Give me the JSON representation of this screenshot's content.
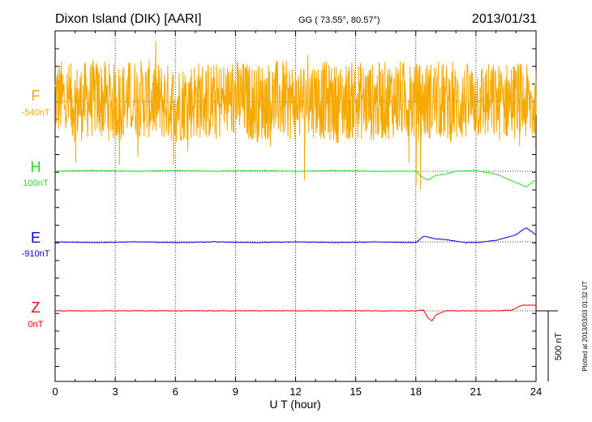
{
  "header": {
    "station": "Dixon Island (DIK)  [AARI]",
    "coords": "GG ( 73.55°,  80.57°)",
    "date": "2013/01/31"
  },
  "side_note": "Plotted at 2013/03/03 01:32 UT",
  "scale_label": "500 nT",
  "colors": {
    "F": "#f5a800",
    "H": "#22dd22",
    "E": "#0000dd",
    "Z": "#ee0000",
    "axis": "#000000"
  },
  "chart_data": {
    "type": "line",
    "title": "Dixon Island (DIK)  [AARI]",
    "xlabel": "U T (hour)",
    "xlim": [
      0,
      24
    ],
    "x_ticks": [
      "0",
      "3",
      "6",
      "9",
      "12",
      "15",
      "18",
      "21",
      "24"
    ],
    "grid": "dotted vertical at 3-hour intervals, dotted horizontal baselines",
    "scale_bar_nT": 500,
    "series": [
      {
        "name": "F",
        "baseline_label": "-540nT",
        "color": "#f5a800",
        "note": "highly noisy trace oscillating roughly ±350 nT around baseline",
        "x": [
          0,
          1,
          2,
          3,
          4,
          5,
          6,
          7,
          8,
          9,
          10,
          11,
          12,
          13,
          14,
          15,
          16,
          17,
          18,
          19,
          20,
          21,
          22,
          23,
          24
        ],
        "y": [
          120,
          -60,
          90,
          -40,
          110,
          30,
          -80,
          60,
          -20,
          90,
          -50,
          70,
          0,
          100,
          -70,
          40,
          -30,
          80,
          -20,
          50,
          -90,
          30,
          -40,
          60,
          -180
        ]
      },
      {
        "name": "H",
        "baseline_label": "100nT",
        "color": "#22dd22",
        "x": [
          0,
          2,
          4,
          6,
          8,
          10,
          12,
          14,
          16,
          18,
          18.3,
          18.6,
          19,
          19.5,
          20,
          21,
          22,
          23,
          23.5,
          24
        ],
        "y": [
          0,
          5,
          0,
          5,
          0,
          5,
          0,
          5,
          0,
          0,
          -40,
          -60,
          -30,
          -20,
          0,
          5,
          -20,
          -80,
          -110,
          -60
        ]
      },
      {
        "name": "E",
        "baseline_label": "-910nT",
        "color": "#0000dd",
        "x": [
          0,
          2,
          4,
          6,
          8,
          10,
          12,
          14,
          16,
          18,
          18.4,
          18.7,
          19,
          19.5,
          20,
          20.5,
          21,
          22,
          23,
          23.5,
          24
        ],
        "y": [
          0,
          -5,
          0,
          -5,
          0,
          -5,
          0,
          -5,
          0,
          -5,
          40,
          30,
          20,
          15,
          5,
          -5,
          -5,
          10,
          50,
          100,
          50
        ]
      },
      {
        "name": "Z",
        "baseline_label": "0nT",
        "color": "#ee0000",
        "x": [
          0,
          2,
          4,
          6,
          8,
          10,
          12,
          14,
          16,
          18,
          18.4,
          18.6,
          18.8,
          19,
          19.5,
          20,
          21,
          22,
          22.8,
          23.3,
          24
        ],
        "y": [
          0,
          0,
          0,
          0,
          0,
          0,
          0,
          0,
          0,
          0,
          5,
          -50,
          -70,
          -30,
          0,
          0,
          0,
          0,
          5,
          40,
          40
        ]
      }
    ]
  }
}
